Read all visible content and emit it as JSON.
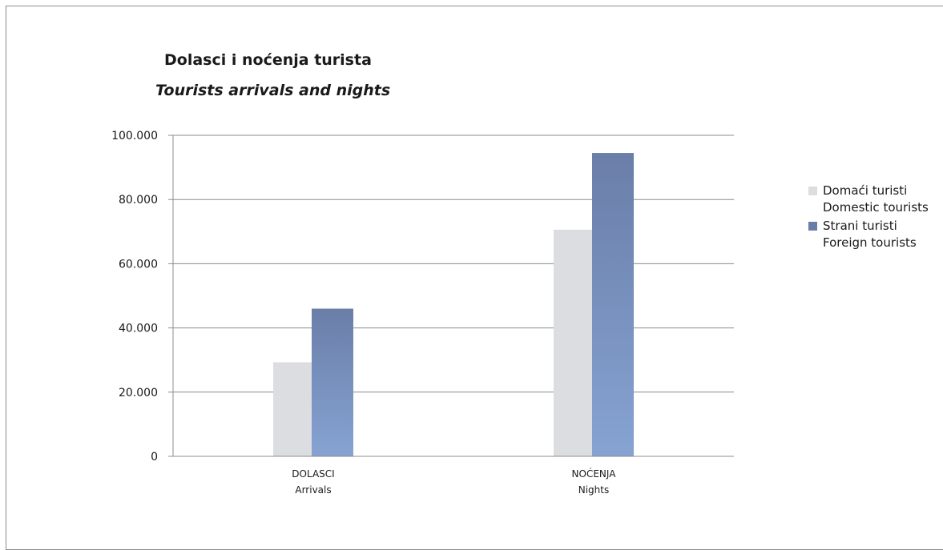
{
  "chart_data": {
    "type": "bar",
    "title": "Dolasci i noćenja turista",
    "subtitle": "Tourists arrivals and nights",
    "categories": [
      {
        "line1": "DOLASCI",
        "line2": "Arrivals"
      },
      {
        "line1": "NOĆENJA",
        "line2": "Nights"
      }
    ],
    "series": [
      {
        "name": "Domaći turisti",
        "name_en": "Domestic tourists",
        "values": [
          29300,
          70600
        ],
        "color": "#dcdde0"
      },
      {
        "name": "Strani turisti",
        "name_en": "Foreign tourists",
        "values": [
          46000,
          94500
        ],
        "color_top": "#6a7ea8",
        "color_bottom": "#86a3d2"
      }
    ],
    "ylim": [
      0,
      100000
    ],
    "yticks": [
      "0",
      "20.000",
      "40.000",
      "60.000",
      "80.000",
      "100.000"
    ],
    "grid": true,
    "legend_position": "right"
  }
}
